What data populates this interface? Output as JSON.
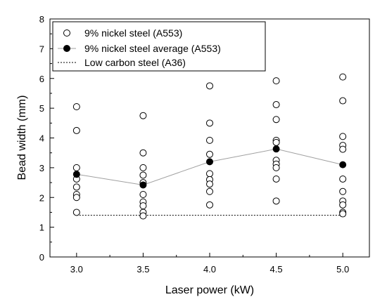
{
  "chart_data": {
    "type": "scatter",
    "xlabel": "Laser power (kW)",
    "ylabel": "Bead width (mm)",
    "xlim": [
      2.8,
      5.2
    ],
    "ylim": [
      0,
      8
    ],
    "x_ticks": [
      "3.0",
      "3.5",
      "4.0",
      "4.5",
      "5.0"
    ],
    "x_tick_values": [
      3.0,
      3.5,
      4.0,
      4.5,
      5.0
    ],
    "y_ticks": [
      "0",
      "1",
      "2",
      "3",
      "4",
      "5",
      "6",
      "7",
      "8"
    ],
    "y_tick_values": [
      0,
      1,
      2,
      3,
      4,
      5,
      6,
      7,
      8
    ],
    "grid": false,
    "legend_position": "top-left",
    "series": [
      {
        "name": "9% nickel steel (A553)",
        "style": "open-circle",
        "points": [
          [
            3.0,
            5.05
          ],
          [
            3.0,
            4.25
          ],
          [
            3.0,
            3.0
          ],
          [
            3.0,
            2.62
          ],
          [
            3.0,
            2.35
          ],
          [
            3.0,
            2.1
          ],
          [
            3.0,
            2.0
          ],
          [
            3.0,
            1.5
          ],
          [
            3.5,
            4.75
          ],
          [
            3.5,
            3.5
          ],
          [
            3.5,
            3.0
          ],
          [
            3.5,
            2.75
          ],
          [
            3.5,
            2.5
          ],
          [
            3.5,
            2.1
          ],
          [
            3.5,
            1.85
          ],
          [
            3.5,
            1.72
          ],
          [
            3.5,
            1.5
          ],
          [
            3.5,
            1.38
          ],
          [
            4.0,
            5.75
          ],
          [
            4.0,
            4.5
          ],
          [
            4.0,
            3.92
          ],
          [
            4.0,
            3.45
          ],
          [
            4.0,
            2.8
          ],
          [
            4.0,
            2.6
          ],
          [
            4.0,
            2.45
          ],
          [
            4.0,
            2.2
          ],
          [
            4.0,
            1.75
          ],
          [
            4.5,
            5.92
          ],
          [
            4.5,
            5.12
          ],
          [
            4.5,
            4.62
          ],
          [
            4.5,
            3.92
          ],
          [
            4.5,
            3.85
          ],
          [
            4.5,
            3.25
          ],
          [
            4.5,
            3.12
          ],
          [
            4.5,
            3.0
          ],
          [
            4.5,
            2.62
          ],
          [
            4.5,
            1.88
          ],
          [
            5.0,
            6.05
          ],
          [
            5.0,
            5.25
          ],
          [
            5.0,
            4.05
          ],
          [
            5.0,
            3.75
          ],
          [
            5.0,
            3.62
          ],
          [
            5.0,
            2.62
          ],
          [
            5.0,
            2.2
          ],
          [
            5.0,
            1.88
          ],
          [
            5.0,
            1.75
          ],
          [
            5.0,
            1.5
          ],
          [
            5.0,
            1.45
          ]
        ]
      },
      {
        "name": "9% nickel steel average (A553)",
        "style": "filled-circle-line",
        "color": "#a0a0a0",
        "x": [
          3.0,
          3.5,
          4.0,
          4.5,
          5.0
        ],
        "y": [
          2.78,
          2.42,
          3.2,
          3.63,
          3.1
        ]
      },
      {
        "name": "Low carbon steel (A36)",
        "style": "dashed-line",
        "color": "#000000",
        "x": [
          3.0,
          5.0
        ],
        "y": [
          1.4,
          1.4
        ]
      }
    ]
  }
}
